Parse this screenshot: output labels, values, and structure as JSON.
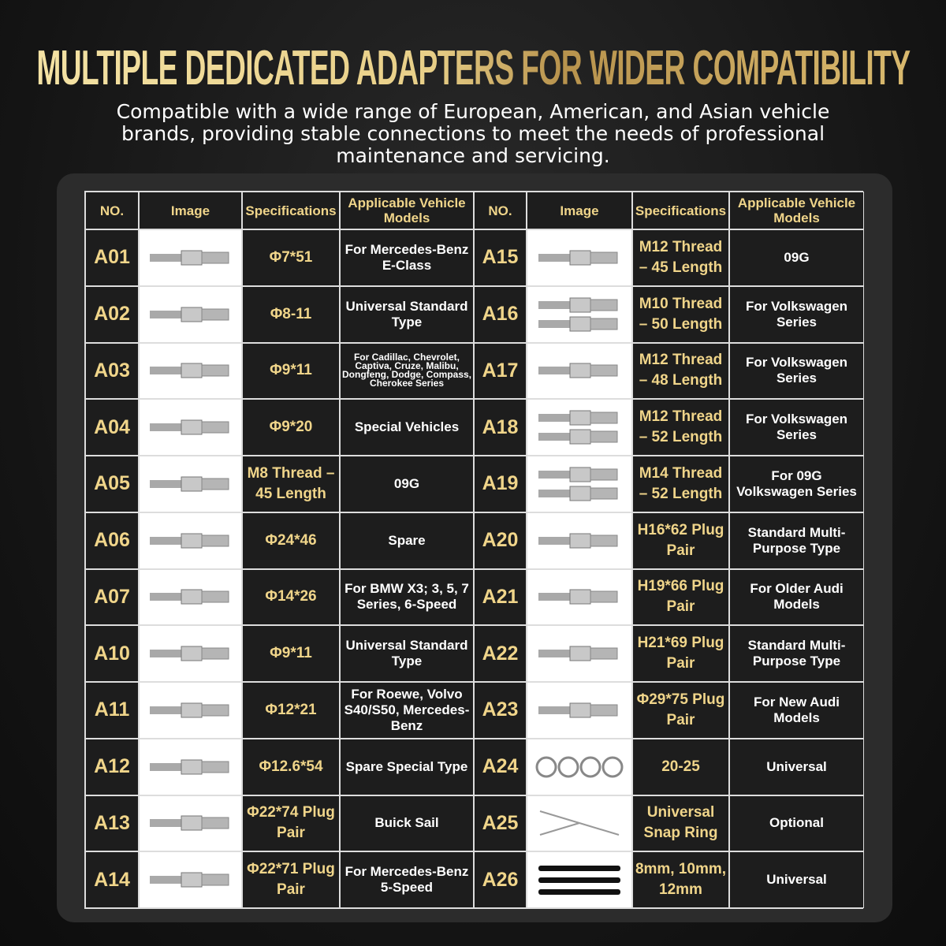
{
  "header": {
    "title": "MULTIPLE DEDICATED ADAPTERS FOR WIDER COMPATIBILITY",
    "subtitle": "Compatible with a wide range of European, American, and Asian vehicle brands, providing stable connections to meet the needs of professional maintenance and servicing."
  },
  "table": {
    "columns": [
      "NO.",
      "Image",
      "Specifications",
      "Applicable Vehicle Models",
      "NO.",
      "Image",
      "Specifications",
      "Applicable Vehicle Models"
    ],
    "rows": [
      [
        "A01",
        "Φ7*51",
        "For Mercedes-Benz E-Class",
        "A15",
        "M12 Thread – 45 Length",
        "09G"
      ],
      [
        "A02",
        "Φ8-11",
        "Universal Standard Type",
        "A16",
        "M10 Thread – 50 Length",
        "For Volkswagen Series"
      ],
      [
        "A03",
        "Φ9*11",
        "For Cadillac, Chevrolet, Captiva, Cruze, Malibu, Dongfeng, Dodge, Compass, Cherokee Series",
        "A17",
        "M12 Thread – 48 Length",
        "For Volkswagen Series"
      ],
      [
        "A04",
        "Φ9*20",
        "Special Vehicles",
        "A18",
        "M12 Thread – 52 Length",
        "For Volkswagen Series"
      ],
      [
        "A05",
        "M8 Thread – 45 Length",
        "09G",
        "A19",
        "M14 Thread – 52 Length",
        "For 09G Volkswagen Series"
      ],
      [
        "A06",
        "Φ24*46",
        "Spare",
        "A20",
        "H16*62 Plug Pair",
        "Standard Multi-Purpose Type"
      ],
      [
        "A07",
        "Φ14*26",
        "For BMW X3; 3, 5, 7 Series, 6-Speed",
        "A21",
        "H19*66 Plug Pair",
        "For Older Audi Models"
      ],
      [
        "A10",
        "Φ9*11",
        "Universal Standard Type",
        "A22",
        "H21*69 Plug Pair",
        "Standard Multi-Purpose Type"
      ],
      [
        "A11",
        "Φ12*21",
        "For Roewe, Volvo S40/S50, Mercedes-Benz",
        "A23",
        "Φ29*75 Plug Pair",
        "For New Audi Models"
      ],
      [
        "A12",
        "Φ12.6*54",
        "Spare Special Type",
        "A24",
        "20-25",
        "Universal"
      ],
      [
        "A13",
        "Φ22*74 Plug Pair",
        "Buick Sail",
        "A25",
        "Universal Snap Ring",
        "Optional"
      ],
      [
        "A14",
        "Φ22*71 Plug Pair",
        "For Mercedes-Benz 5-Speed",
        "A26",
        "8mm, 10mm, 12mm",
        "Universal"
      ]
    ]
  }
}
